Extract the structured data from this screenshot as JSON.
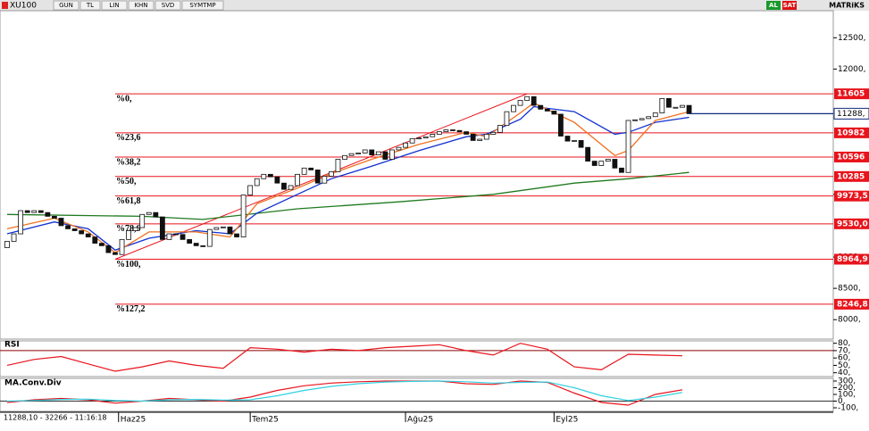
{
  "chart_data": {
    "type": "candlestick",
    "symbol": "XU100",
    "toolbar": [
      "GUN",
      "TL",
      "LIN",
      "KHN",
      "SVD",
      "SYMTMP"
    ],
    "right_buttons": [
      "AL",
      "SAT"
    ],
    "brand": "MATRiKS",
    "status": "11288,10 - 32266 - 11:16:18",
    "dates": [
      {
        "index": 16.5,
        "label": "Haz25"
      },
      {
        "index": 36,
        "label": "Tem25"
      },
      {
        "index": 59,
        "label": "Ağu25"
      },
      {
        "index": 81,
        "label": "Eyl25"
      }
    ],
    "open": [
      9150,
      9250,
      9370,
      9740,
      9710,
      9740,
      9710,
      9650,
      9620,
      9500,
      9450,
      9420,
      9370,
      9320,
      9220,
      9180,
      9070,
      9040,
      9280,
      9420,
      9470,
      9680,
      9710,
      9640,
      9280,
      9370,
      9360,
      9280,
      9220,
      9180,
      9170,
      9440,
      9470,
      9480,
      9370,
      9320,
      9990,
      10140,
      10250,
      10320,
      10280,
      10180,
      10080,
      10140,
      10320,
      10420,
      10390,
      10180,
      10290,
      10360,
      10560,
      10620,
      10650,
      10660,
      10710,
      10630,
      10680,
      10560,
      10710,
      10750,
      10820,
      10890,
      10900,
      10920,
      10960,
      11000,
      11030,
      11020,
      11000,
      10960,
      10860,
      10880,
      10960,
      10990,
      11100,
      11320,
      11420,
      11500,
      11560,
      11420,
      11360,
      11330,
      11280,
      10930,
      10850,
      10860,
      10750,
      10530,
      10460,
      10530,
      10560,
      10420,
      10350,
      11180,
      11190,
      11210,
      11240,
      11300,
      11530,
      11390,
      11390,
      11420
    ],
    "close": [
      9250,
      9370,
      9740,
      9710,
      9740,
      9710,
      9650,
      9620,
      9500,
      9450,
      9420,
      9370,
      9320,
      9220,
      9180,
      9070,
      9040,
      9280,
      9420,
      9470,
      9680,
      9710,
      9640,
      9280,
      9370,
      9360,
      9280,
      9220,
      9180,
      9170,
      9440,
      9470,
      9480,
      9370,
      9320,
      9990,
      10140,
      10250,
      10320,
      10280,
      10180,
      10080,
      10140,
      10320,
      10420,
      10390,
      10180,
      10290,
      10360,
      10560,
      10620,
      10650,
      10660,
      10710,
      10630,
      10680,
      10560,
      10710,
      10750,
      10820,
      10890,
      10900,
      10920,
      10960,
      11000,
      11030,
      11020,
      11000,
      10960,
      10860,
      10880,
      10960,
      10990,
      11100,
      11320,
      11420,
      11500,
      11560,
      11420,
      11360,
      11330,
      11280,
      10930,
      10850,
      10860,
      10750,
      10530,
      10460,
      10530,
      10560,
      10420,
      10350,
      11180,
      11190,
      11210,
      11240,
      11300,
      11530,
      11390,
      11390,
      11420,
      11288.1
    ],
    "up_color": "#ffffff",
    "down_color": "#111111",
    "ylim": [
      7690,
      12960
    ],
    "yticks": [
      {
        "value": 12500,
        "label": "12500,"
      },
      {
        "value": 12000,
        "label": "12000,"
      },
      {
        "value": 10000,
        "label": "10000,"
      },
      {
        "value": 9000,
        "label": "9000,"
      },
      {
        "value": 8500,
        "label": "8500,"
      },
      {
        "value": 8000,
        "label": "8000,"
      }
    ],
    "last": {
      "value": 11288.1,
      "label": "11288,"
    },
    "fib_color": "#e8141c",
    "fib_levels": [
      {
        "value": 11605,
        "label": "%0,",
        "value_label": "11605"
      },
      {
        "value": 10982,
        "label": "%23,6",
        "value_label": "10982"
      },
      {
        "value": 10596,
        "label": "%38,2",
        "value_label": "10596"
      },
      {
        "value": 10285,
        "label": "%50,",
        "value_label": "10285"
      },
      {
        "value": 9973.5,
        "label": "%61,8",
        "value_label": "9973,5"
      },
      {
        "value": 9530,
        "label": "%78,6",
        "value_label": "9530,0"
      },
      {
        "value": 8964.9,
        "label": "%100,",
        "value_label": "8964,9"
      },
      {
        "value": 8246.8,
        "label": "%127,2",
        "value_label": "8246,8"
      }
    ],
    "fib_start_index": 16,
    "fib_end_index": 77,
    "series": [
      {
        "color": "#1f7a1f",
        "x": [
          0,
          20,
          29,
          43,
          58,
          72,
          84,
          92,
          101
        ],
        "values": [
          9680,
          9650,
          9600,
          9770,
          9880,
          10000,
          10180,
          10250,
          10350
        ]
      },
      {
        "color": "#1030d0",
        "x": [
          0,
          7,
          12,
          16,
          21,
          28,
          33,
          37,
          43,
          48,
          54,
          61,
          68,
          71,
          76,
          78,
          84,
          90,
          92,
          96,
          101
        ],
        "values": [
          9370,
          9560,
          9450,
          9110,
          9300,
          9420,
          9370,
          9700,
          10000,
          10250,
          10450,
          10700,
          10920,
          10960,
          11200,
          11400,
          11320,
          10960,
          10990,
          11150,
          11230
        ]
      },
      {
        "color": "#f07020",
        "x": [
          0,
          7,
          12,
          16,
          21,
          28,
          33,
          37,
          43,
          48,
          54,
          61,
          68,
          71,
          76,
          78,
          84,
          90,
          92,
          96,
          101
        ],
        "values": [
          9450,
          9620,
          9400,
          9070,
          9400,
          9400,
          9320,
          9850,
          10100,
          10330,
          10560,
          10800,
          10990,
          10920,
          11300,
          11460,
          11150,
          10620,
          10700,
          11180,
          11320
        ]
      }
    ],
    "rsi": {
      "title": "RSI",
      "color": "#e8141c",
      "ylim": [
        36,
        82
      ],
      "yticks": [
        {
          "value": 80,
          "label": "80,"
        },
        {
          "value": 70,
          "label": "70,"
        },
        {
          "value": 60,
          "label": "60,"
        },
        {
          "value": 50,
          "label": "50,"
        },
        {
          "value": 40,
          "label": "40,"
        }
      ],
      "x": [
        0,
        4,
        8,
        12,
        16,
        20,
        24,
        28,
        32,
        36,
        40,
        44,
        48,
        52,
        56,
        60,
        64,
        68,
        72,
        76,
        80,
        84,
        88,
        92,
        96,
        100
      ],
      "values": [
        50,
        58,
        62,
        52,
        42,
        48,
        56,
        50,
        46,
        74,
        72,
        68,
        72,
        70,
        74,
        76,
        78,
        70,
        64,
        80,
        72,
        48,
        44,
        65,
        64,
        63
      ]
    },
    "macd": {
      "title": "MA.Conv.Div",
      "ylim": [
        -140,
        340
      ],
      "yticks": [
        {
          "value": 300,
          "label": "300,"
        },
        {
          "value": 200,
          "label": "200,"
        },
        {
          "value": 100,
          "label": "100,"
        },
        {
          "value": 0,
          "label": "0,"
        },
        {
          "value": -100,
          "label": "-100,"
        }
      ],
      "x": [
        0,
        4,
        8,
        12,
        16,
        20,
        24,
        28,
        32,
        36,
        40,
        44,
        48,
        52,
        56,
        60,
        64,
        68,
        72,
        76,
        80,
        84,
        88,
        92,
        96,
        100
      ],
      "series": [
        {
          "color": "#e8141c",
          "values": [
            -20,
            20,
            40,
            20,
            -30,
            0,
            40,
            20,
            0,
            60,
            160,
            230,
            270,
            290,
            300,
            300,
            300,
            260,
            250,
            300,
            280,
            120,
            -20,
            -60,
            100,
            170
          ]
        },
        {
          "color": "#30d0e0",
          "values": [
            0,
            10,
            25,
            30,
            10,
            0,
            20,
            25,
            15,
            20,
            80,
            160,
            220,
            260,
            285,
            295,
            300,
            290,
            270,
            280,
            285,
            200,
            80,
            10,
            60,
            130
          ]
        }
      ]
    }
  }
}
